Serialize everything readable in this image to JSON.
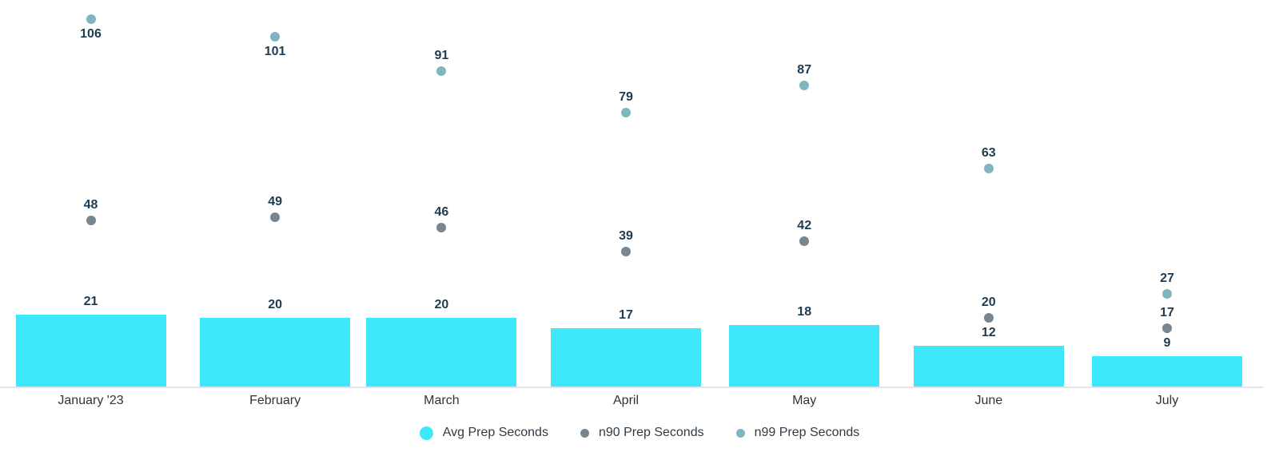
{
  "chart_data": {
    "type": "bar",
    "subtype": "bar-with-scatter-overlay",
    "title": "",
    "xlabel": "",
    "ylabel": "",
    "categories": [
      "January '23",
      "February",
      "March",
      "April",
      "May",
      "June",
      "July"
    ],
    "series": [
      {
        "name": "Avg Prep Seconds",
        "render": "bar",
        "color": "#3DE8FA",
        "values": [
          21,
          20,
          20,
          17,
          18,
          12,
          9
        ]
      },
      {
        "name": "n90 Prep Seconds",
        "render": "point",
        "color": "#78868F",
        "values": [
          48,
          49,
          46,
          39,
          42,
          20,
          17
        ]
      },
      {
        "name": "n99 Prep Seconds",
        "render": "point",
        "color": "#80B5BF",
        "values": [
          106,
          101,
          91,
          79,
          87,
          63,
          27
        ]
      }
    ],
    "ylim": [
      0,
      112
    ],
    "grid": false,
    "y_axis_visible": false,
    "legend_position": "bottom",
    "data_labels": true,
    "data_label_color": "#1C3C52",
    "axis_line_color": "#E0E4EA",
    "x_axis_type": "datetime-monthly"
  }
}
